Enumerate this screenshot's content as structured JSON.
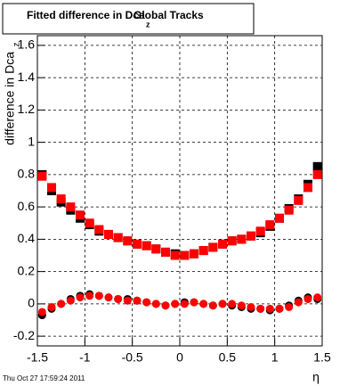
{
  "chart_data": {
    "type": "scatter",
    "title": "Fitted difference in Dca",
    "title_subscript": "z",
    "title_suffix": "Global Tracks",
    "y_label": "difference in Dca",
    "y_label_subscript": "z",
    "x_label": "η",
    "footer": "Thu Oct 27 17:59:24 2011",
    "xlim": [
      -1.5,
      1.5
    ],
    "ylim": [
      -0.26,
      1.66
    ],
    "xticks": [
      -1.5,
      -1,
      -0.5,
      0,
      0.5,
      1,
      1.5
    ],
    "yticks": [
      -0.2,
      0,
      0.2,
      0.4,
      0.6,
      0.8,
      1,
      1.2,
      1.4,
      1.6
    ],
    "grid": true,
    "x": [
      -1.45,
      -1.35,
      -1.25,
      -1.15,
      -1.05,
      -0.95,
      -0.85,
      -0.75,
      -0.65,
      -0.55,
      -0.45,
      -0.35,
      -0.25,
      -0.15,
      -0.05,
      0.05,
      0.15,
      0.25,
      0.35,
      0.45,
      0.55,
      0.65,
      0.75,
      0.85,
      0.95,
      1.05,
      1.15,
      1.25,
      1.35,
      1.45
    ],
    "series": [
      {
        "color": "#000000",
        "marker": "square",
        "values": [
          0.8,
          0.7,
          0.63,
          0.58,
          0.53,
          0.49,
          0.45,
          0.43,
          0.41,
          0.39,
          0.37,
          0.36,
          0.34,
          0.32,
          0.31,
          0.3,
          0.31,
          0.33,
          0.35,
          0.37,
          0.39,
          0.4,
          0.42,
          0.44,
          0.48,
          0.53,
          0.59,
          0.65,
          0.74,
          0.85
        ]
      },
      {
        "color": "#000000",
        "marker": "circle",
        "values": [
          -0.07,
          -0.03,
          0,
          0.03,
          0.05,
          0.06,
          0.05,
          0.04,
          0.03,
          0.03,
          0.02,
          0.01,
          0,
          -0.01,
          0,
          0.01,
          0.01,
          0,
          -0.01,
          0,
          -0.01,
          -0.02,
          -0.03,
          -0.03,
          -0.04,
          -0.03,
          -0.01,
          0.02,
          0.04,
          0.03
        ]
      },
      {
        "color": "#ff0000",
        "marker": "square",
        "values": [
          0.79,
          0.72,
          0.65,
          0.6,
          0.55,
          0.5,
          0.46,
          0.43,
          0.41,
          0.39,
          0.37,
          0.36,
          0.34,
          0.32,
          0.3,
          0.3,
          0.31,
          0.33,
          0.35,
          0.37,
          0.39,
          0.4,
          0.42,
          0.45,
          0.49,
          0.53,
          0.58,
          0.64,
          0.72,
          0.8
        ]
      },
      {
        "color": "#ff0000",
        "marker": "circle",
        "values": [
          -0.05,
          -0.02,
          0,
          0.02,
          0.04,
          0.05,
          0.05,
          0.04,
          0.03,
          0.02,
          0.02,
          0.01,
          0,
          -0.01,
          0,
          0,
          0.01,
          0,
          -0.01,
          0,
          0,
          -0.01,
          -0.02,
          -0.03,
          -0.03,
          -0.03,
          -0.02,
          0.01,
          0.03,
          0.04
        ]
      }
    ]
  }
}
